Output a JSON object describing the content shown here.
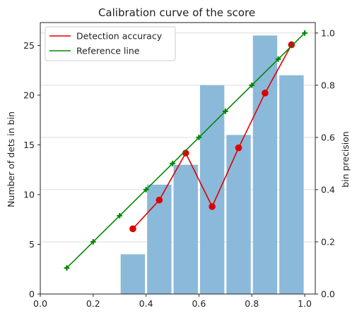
{
  "chart_data": {
    "type": "bar",
    "title": "Calibration curve of the score",
    "xlabel": "",
    "ylabel": "Number of dets in bin",
    "y2label": "bin precision",
    "xlim": [
      0.0,
      1.04
    ],
    "ylim": [
      0,
      27.3
    ],
    "y2lim": [
      0,
      1.04
    ],
    "xticks": [
      "0.0",
      "0.2",
      "0.4",
      "0.6",
      "0.8",
      "1.0"
    ],
    "yticks": [
      "0",
      "5",
      "10",
      "15",
      "20",
      "25"
    ],
    "y2ticks": [
      "0.0",
      "0.2",
      "0.4",
      "0.6",
      "0.8",
      "1.0"
    ],
    "grid": "horizontal (right axis)",
    "legend_position": "top-left",
    "bars": {
      "color": "#8bb9da",
      "bin_width": 0.1,
      "bin_left": [
        0.3,
        0.4,
        0.5,
        0.6,
        0.7,
        0.8,
        0.9
      ],
      "counts": [
        4,
        11,
        13,
        21,
        16,
        26,
        22
      ]
    },
    "series": [
      {
        "name": "Detection accuracy",
        "color": "#dd0000",
        "marker": "circle",
        "axis": "right",
        "x": [
          0.35,
          0.45,
          0.55,
          0.65,
          0.75,
          0.85,
          0.95
        ],
        "y": [
          0.25,
          0.36,
          0.54,
          0.335,
          0.56,
          0.77,
          0.955
        ]
      },
      {
        "name": "Reference line",
        "color": "#008800",
        "marker": "plus",
        "axis": "right",
        "x": [
          0.1,
          0.2,
          0.3,
          0.4,
          0.5,
          0.6,
          0.7,
          0.8,
          0.9,
          1.0
        ],
        "y": [
          0.1,
          0.2,
          0.3,
          0.4,
          0.5,
          0.6,
          0.7,
          0.8,
          0.9,
          1.0
        ]
      }
    ]
  }
}
